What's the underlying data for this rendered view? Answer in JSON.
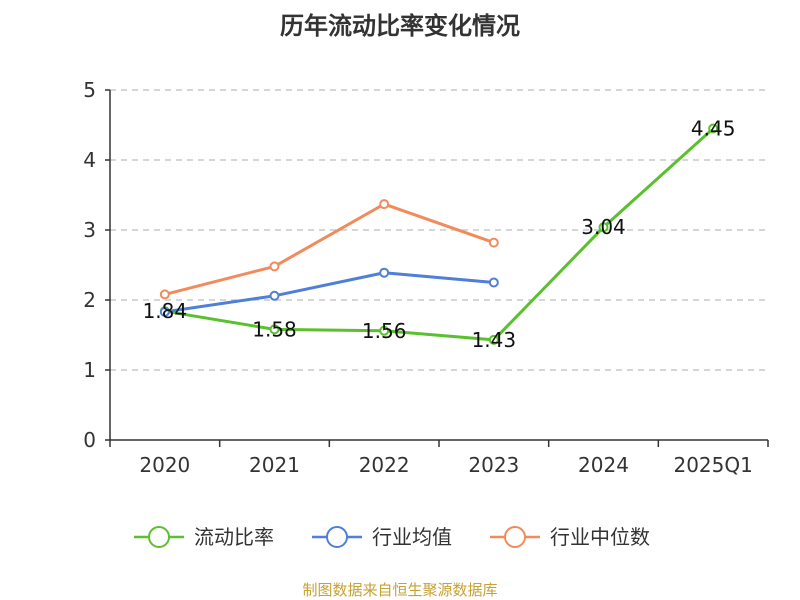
{
  "chart_data": {
    "type": "line",
    "title": "历年流动比率变化情况",
    "categories": [
      "2020",
      "2021",
      "2022",
      "2023",
      "2024",
      "2025Q1"
    ],
    "ylim": [
      0,
      5
    ],
    "yticks": [
      "0",
      "1",
      "2",
      "3",
      "4",
      "5"
    ],
    "grid": true,
    "legend_position": "bottom",
    "series": [
      {
        "name": "流动比率",
        "color": "#5ac02d",
        "values": [
          1.84,
          1.58,
          1.56,
          1.43,
          3.04,
          4.45
        ],
        "labels": [
          "1.84",
          "1.58",
          "1.56",
          "1.43",
          "3.04",
          "4.45"
        ]
      },
      {
        "name": "行业均值",
        "color": "#4f7fd8",
        "values": [
          1.83,
          2.06,
          2.39,
          2.25,
          null,
          null
        ]
      },
      {
        "name": "行业中位数",
        "color": "#f28b5b",
        "values": [
          2.08,
          2.48,
          3.37,
          2.82,
          null,
          null
        ]
      }
    ]
  },
  "source_text": "制图数据来自恒生聚源数据库"
}
